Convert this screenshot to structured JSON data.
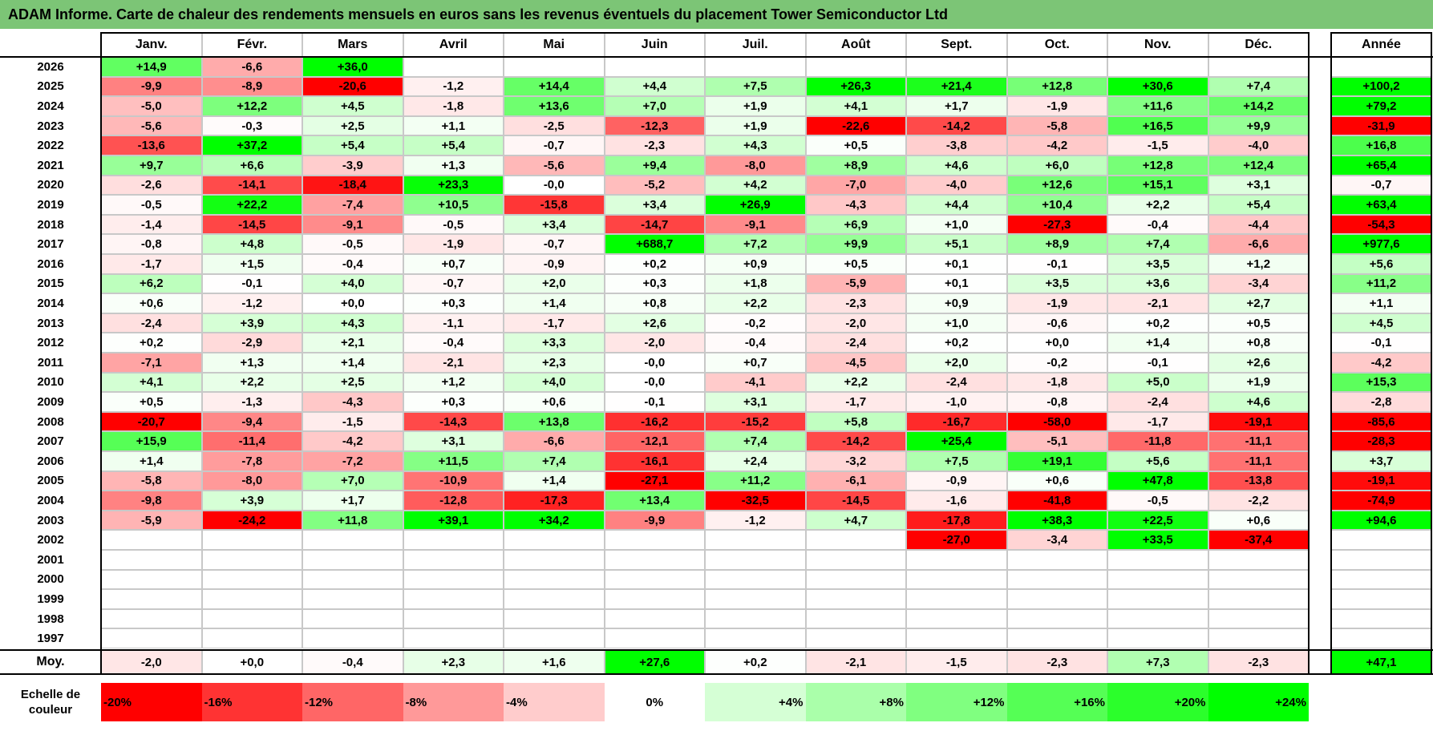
{
  "title": "ADAM Informe. Carte de chaleur des rendements mensuels en euros sans les revenus éventuels du placement Tower Semiconductor Ltd",
  "chart_data": {
    "type": "heatmap",
    "columns": [
      "Janv.",
      "Févr.",
      "Mars",
      "Avril",
      "Mai",
      "Juin",
      "Juil.",
      "Août",
      "Sept.",
      "Oct.",
      "Nov.",
      "Déc."
    ],
    "year_column": "Année",
    "rows": [
      {
        "year": "2026",
        "values": [
          "+14,9",
          "-6,6",
          "+36,0",
          "",
          "",
          "",
          "",
          "",
          "",
          "",
          "",
          ""
        ],
        "annual": ""
      },
      {
        "year": "2025",
        "values": [
          "-9,9",
          "-8,9",
          "-20,6",
          "-1,2",
          "+14,4",
          "+4,4",
          "+7,5",
          "+26,3",
          "+21,4",
          "+12,8",
          "+30,6",
          "+7,4"
        ],
        "annual": "+100,2"
      },
      {
        "year": "2024",
        "values": [
          "-5,0",
          "+12,2",
          "+4,5",
          "-1,8",
          "+13,6",
          "+7,0",
          "+1,9",
          "+4,1",
          "+1,7",
          "-1,9",
          "+11,6",
          "+14,2"
        ],
        "annual": "+79,2"
      },
      {
        "year": "2023",
        "values": [
          "-5,6",
          "-0,3",
          "+2,5",
          "+1,1",
          "-2,5",
          "-12,3",
          "+1,9",
          "-22,6",
          "-14,2",
          "-5,8",
          "+16,5",
          "+9,9"
        ],
        "annual": "-31,9"
      },
      {
        "year": "2022",
        "values": [
          "-13,6",
          "+37,2",
          "+5,4",
          "+5,4",
          "-0,7",
          "-2,3",
          "+4,3",
          "+0,5",
          "-3,8",
          "-4,2",
          "-1,5",
          "-4,0"
        ],
        "annual": "+16,8"
      },
      {
        "year": "2021",
        "values": [
          "+9,7",
          "+6,6",
          "-3,9",
          "+1,3",
          "-5,6",
          "+9,4",
          "-8,0",
          "+8,9",
          "+4,6",
          "+6,0",
          "+12,8",
          "+12,4"
        ],
        "annual": "+65,4"
      },
      {
        "year": "2020",
        "values": [
          "-2,6",
          "-14,1",
          "-18,4",
          "+23,3",
          "-0,0",
          "-5,2",
          "+4,2",
          "-7,0",
          "-4,0",
          "+12,6",
          "+15,1",
          "+3,1"
        ],
        "annual": "-0,7"
      },
      {
        "year": "2019",
        "values": [
          "-0,5",
          "+22,2",
          "-7,4",
          "+10,5",
          "-15,8",
          "+3,4",
          "+26,9",
          "-4,3",
          "+4,4",
          "+10,4",
          "+2,2",
          "+5,4"
        ],
        "annual": "+63,4"
      },
      {
        "year": "2018",
        "values": [
          "-1,4",
          "-14,5",
          "-9,1",
          "-0,5",
          "+3,4",
          "-14,7",
          "-9,1",
          "+6,9",
          "+1,0",
          "-27,3",
          "-0,4",
          "-4,4"
        ],
        "annual": "-54,3"
      },
      {
        "year": "2017",
        "values": [
          "-0,8",
          "+4,8",
          "-0,5",
          "-1,9",
          "-0,7",
          "+688,7",
          "+7,2",
          "+9,9",
          "+5,1",
          "+8,9",
          "+7,4",
          "-6,6"
        ],
        "annual": "+977,6"
      },
      {
        "year": "2016",
        "values": [
          "-1,7",
          "+1,5",
          "-0,4",
          "+0,7",
          "-0,9",
          "+0,2",
          "+0,9",
          "+0,5",
          "+0,1",
          "-0,1",
          "+3,5",
          "+1,2"
        ],
        "annual": "+5,6"
      },
      {
        "year": "2015",
        "values": [
          "+6,2",
          "-0,1",
          "+4,0",
          "-0,7",
          "+2,0",
          "+0,3",
          "+1,8",
          "-5,9",
          "+0,1",
          "+3,5",
          "+3,6",
          "-3,4"
        ],
        "annual": "+11,2"
      },
      {
        "year": "2014",
        "values": [
          "+0,6",
          "-1,2",
          "+0,0",
          "+0,3",
          "+1,4",
          "+0,8",
          "+2,2",
          "-2,3",
          "+0,9",
          "-1,9",
          "-2,1",
          "+2,7"
        ],
        "annual": "+1,1"
      },
      {
        "year": "2013",
        "values": [
          "-2,4",
          "+3,9",
          "+4,3",
          "-1,1",
          "-1,7",
          "+2,6",
          "-0,2",
          "-2,0",
          "+1,0",
          "-0,6",
          "+0,2",
          "+0,5"
        ],
        "annual": "+4,5"
      },
      {
        "year": "2012",
        "values": [
          "+0,2",
          "-2,9",
          "+2,1",
          "-0,4",
          "+3,3",
          "-2,0",
          "-0,4",
          "-2,4",
          "+0,2",
          "+0,0",
          "+1,4",
          "+0,8"
        ],
        "annual": "-0,1"
      },
      {
        "year": "2011",
        "values": [
          "-7,1",
          "+1,3",
          "+1,4",
          "-2,1",
          "+2,3",
          "-0,0",
          "+0,7",
          "-4,5",
          "+2,0",
          "-0,2",
          "-0,1",
          "+2,6"
        ],
        "annual": "-4,2"
      },
      {
        "year": "2010",
        "values": [
          "+4,1",
          "+2,2",
          "+2,5",
          "+1,2",
          "+4,0",
          "-0,0",
          "-4,1",
          "+2,2",
          "-2,4",
          "-1,8",
          "+5,0",
          "+1,9"
        ],
        "annual": "+15,3"
      },
      {
        "year": "2009",
        "values": [
          "+0,5",
          "-1,3",
          "-4,3",
          "+0,3",
          "+0,6",
          "-0,1",
          "+3,1",
          "-1,7",
          "-1,0",
          "-0,8",
          "-2,4",
          "+4,6"
        ],
        "annual": "-2,8"
      },
      {
        "year": "2008",
        "values": [
          "-20,7",
          "-9,4",
          "-1,5",
          "-14,3",
          "+13,8",
          "-16,2",
          "-15,2",
          "+5,8",
          "-16,7",
          "-58,0",
          "-1,7",
          "-19,1"
        ],
        "annual": "-85,6"
      },
      {
        "year": "2007",
        "values": [
          "+15,9",
          "-11,4",
          "-4,2",
          "+3,1",
          "-6,6",
          "-12,1",
          "+7,4",
          "-14,2",
          "+25,4",
          "-5,1",
          "-11,8",
          "-11,1"
        ],
        "annual": "-28,3"
      },
      {
        "year": "2006",
        "values": [
          "+1,4",
          "-7,8",
          "-7,2",
          "+11,5",
          "+7,4",
          "-16,1",
          "+2,4",
          "-3,2",
          "+7,5",
          "+19,1",
          "+5,6",
          "-11,1"
        ],
        "annual": "+3,7"
      },
      {
        "year": "2005",
        "values": [
          "-5,8",
          "-8,0",
          "+7,0",
          "-10,9",
          "+1,4",
          "-27,1",
          "+11,2",
          "-6,1",
          "-0,9",
          "+0,6",
          "+47,8",
          "-13,8"
        ],
        "annual": "-19,1"
      },
      {
        "year": "2004",
        "values": [
          "-9,8",
          "+3,9",
          "+1,7",
          "-12,8",
          "-17,3",
          "+13,4",
          "-32,5",
          "-14,5",
          "-1,6",
          "-41,8",
          "-0,5",
          "-2,2"
        ],
        "annual": "-74,9"
      },
      {
        "year": "2003",
        "values": [
          "-5,9",
          "-24,2",
          "+11,8",
          "+39,1",
          "+34,2",
          "-9,9",
          "-1,2",
          "+4,7",
          "-17,8",
          "+38,3",
          "+22,5",
          "+0,6"
        ],
        "annual": "+94,6"
      },
      {
        "year": "2002",
        "values": [
          "",
          "",
          "",
          "",
          "",
          "",
          "",
          "",
          "-27,0",
          "-3,4",
          "+33,5",
          "-37,4"
        ],
        "annual": ""
      },
      {
        "year": "2001",
        "values": [
          "",
          "",
          "",
          "",
          "",
          "",
          "",
          "",
          "",
          "",
          "",
          ""
        ],
        "annual": ""
      },
      {
        "year": "2000",
        "values": [
          "",
          "",
          "",
          "",
          "",
          "",
          "",
          "",
          "",
          "",
          "",
          ""
        ],
        "annual": ""
      },
      {
        "year": "1999",
        "values": [
          "",
          "",
          "",
          "",
          "",
          "",
          "",
          "",
          "",
          "",
          "",
          ""
        ],
        "annual": ""
      },
      {
        "year": "1998",
        "values": [
          "",
          "",
          "",
          "",
          "",
          "",
          "",
          "",
          "",
          "",
          "",
          ""
        ],
        "annual": ""
      },
      {
        "year": "1997",
        "values": [
          "",
          "",
          "",
          "",
          "",
          "",
          "",
          "",
          "",
          "",
          "",
          ""
        ],
        "annual": ""
      }
    ],
    "average": {
      "label": "Moy.",
      "values": [
        "-2,0",
        "+0,0",
        "-0,4",
        "+2,3",
        "+1,6",
        "+27,6",
        "+0,2",
        "-2,1",
        "-1,5",
        "-2,3",
        "+7,3",
        "-2,3"
      ],
      "annual": "+47,1"
    },
    "scale": {
      "label": "Echelle de couleur",
      "steps": [
        "-20%",
        "-16%",
        "-12%",
        "-8%",
        "-4%",
        "0%",
        "+4%",
        "+8%",
        "+12%",
        "+16%",
        "+20%",
        "+24%"
      ]
    },
    "colors": {
      "negative": "#ff0000",
      "neutral": "#ffffff",
      "positive": "#00ff00",
      "title_bar": "#7cc576",
      "grid": "#c8c8c8"
    }
  }
}
